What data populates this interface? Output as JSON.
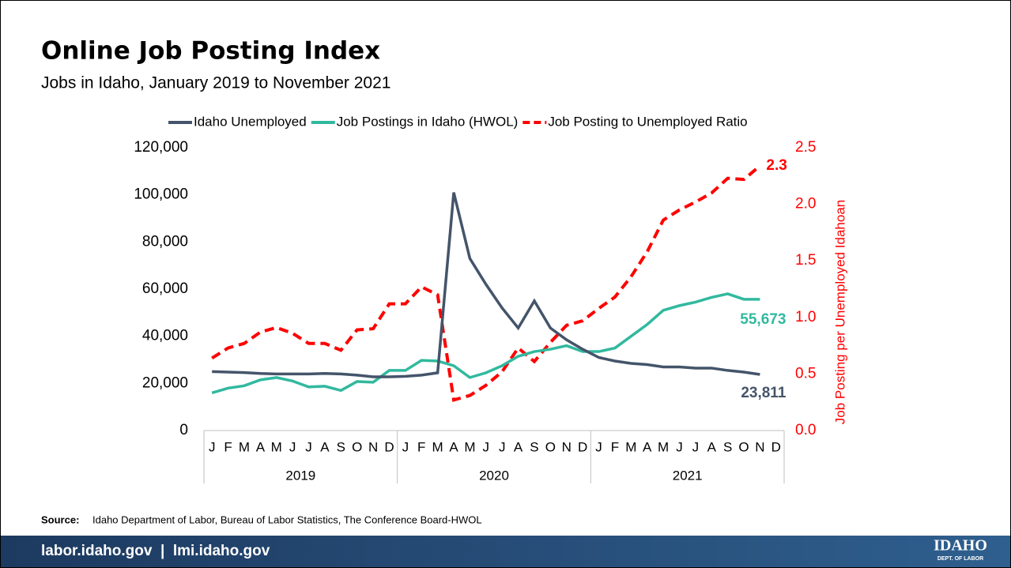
{
  "title": "Online Job Posting Index",
  "subtitle": "Jobs in Idaho, January 2019 to November 2021",
  "chart_data": {
    "type": "line",
    "categories": [
      "J",
      "F",
      "M",
      "A",
      "M",
      "J",
      "J",
      "A",
      "S",
      "O",
      "N",
      "D",
      "J",
      "F",
      "M",
      "A",
      "M",
      "J",
      "J",
      "A",
      "S",
      "O",
      "N",
      "D",
      "J",
      "F",
      "M",
      "A",
      "M",
      "J",
      "J",
      "A",
      "S",
      "O",
      "N",
      "D"
    ],
    "category_groups": [
      "2019",
      "2020",
      "2021"
    ],
    "ylim": [
      0,
      120000
    ],
    "yticks": [
      0,
      {
        "value": 20000,
        "label": "20,000"
      },
      {
        "value": 40000,
        "label": "40,000"
      },
      {
        "value": 60000,
        "label": "60,000"
      },
      {
        "value": 80000,
        "label": "80,000"
      },
      {
        "value": 100000,
        "label": "100,000"
      },
      {
        "value": 120000,
        "label": "120,000"
      }
    ],
    "y2lim": [
      0,
      2.5
    ],
    "y2ticks": [
      {
        "value": 0,
        "label": "0.0"
      },
      0.5,
      {
        "value": 1,
        "label": "1.0"
      },
      1.5,
      {
        "value": 2,
        "label": "2.0"
      },
      2.5
    ],
    "y2_label": "Job Posting per Unemployed Idahoan",
    "series": [
      {
        "name": "Idaho Unemployed",
        "color": "#44546a",
        "dash": false,
        "values": [
          25000,
          24800,
          24600,
          24200,
          24000,
          24000,
          24000,
          24200,
          24000,
          23500,
          22800,
          22800,
          23000,
          23500,
          24500,
          101000,
          73000,
          62000,
          52000,
          43500,
          55000,
          43500,
          38500,
          34500,
          31000,
          29500,
          28500,
          28000,
          27000,
          27000,
          26500,
          26500,
          25500,
          24800,
          23811,
          null
        ],
        "value_labels": [
          null,
          null,
          null,
          null,
          null,
          null,
          null,
          null,
          null,
          null,
          null,
          null,
          null,
          null,
          null,
          null,
          null,
          null,
          null,
          null,
          null,
          null,
          null,
          null,
          null,
          null,
          null,
          null,
          null,
          null,
          null,
          null,
          null,
          null,
          "23,811",
          null
        ]
      },
      {
        "name": "Job Postings in Idaho (HWOL)",
        "color": "#31b99f",
        "dash": false,
        "values": [
          16000,
          18000,
          19000,
          21500,
          22500,
          21000,
          18500,
          18800,
          17000,
          20800,
          20500,
          25500,
          25500,
          29800,
          29500,
          27500,
          22500,
          24500,
          27500,
          31500,
          33500,
          34500,
          36000,
          33500,
          33500,
          35000,
          40000,
          45000,
          51000,
          53000,
          54500,
          56500,
          58000,
          55700,
          55673,
          null
        ],
        "value_labels": [
          null,
          null,
          null,
          null,
          null,
          null,
          null,
          null,
          null,
          null,
          null,
          null,
          null,
          null,
          null,
          null,
          null,
          null,
          null,
          null,
          null,
          null,
          null,
          null,
          null,
          null,
          null,
          null,
          null,
          null,
          null,
          null,
          null,
          null,
          "55,673",
          null
        ]
      },
      {
        "name": "Job Posting to Unemployed Ratio",
        "color": "#ff0000",
        "dash": true,
        "axis": "y2",
        "values": [
          0.64,
          0.73,
          0.77,
          0.87,
          0.91,
          0.86,
          0.77,
          0.77,
          0.71,
          0.89,
          0.9,
          1.12,
          1.12,
          1.27,
          1.2,
          0.27,
          0.31,
          0.4,
          0.52,
          0.73,
          0.61,
          0.78,
          0.93,
          0.97,
          1.08,
          1.18,
          1.36,
          1.58,
          1.86,
          1.95,
          2.02,
          2.1,
          2.23,
          2.22,
          2.34,
          null
        ],
        "value_labels": [
          null,
          null,
          null,
          null,
          null,
          null,
          null,
          null,
          null,
          null,
          null,
          null,
          null,
          null,
          null,
          null,
          null,
          null,
          null,
          null,
          null,
          null,
          null,
          null,
          null,
          null,
          null,
          null,
          null,
          null,
          null,
          null,
          null,
          null,
          "2.3",
          null
        ]
      }
    ]
  },
  "source_label": "Source:",
  "source": "Idaho Department of Labor, Bureau of Labor Statistics, The Conference Board-HWOL",
  "footer": "labor.idaho.gov  |  lmi.idaho.gov",
  "logo": {
    "name": "IDAHO",
    "sub": "DEPT. OF LABOR"
  }
}
